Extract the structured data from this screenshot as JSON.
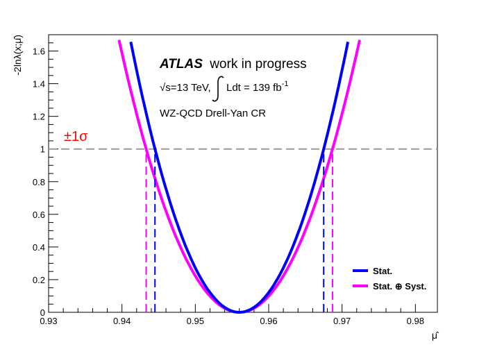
{
  "chart_data": {
    "type": "line",
    "xlabel": "μ̂",
    "ylabel": "-2lnλ(x;μ̂)",
    "xlim": [
      0.93,
      0.983
    ],
    "ylim": [
      0,
      1.7
    ],
    "xticks": [
      "0.93",
      "0.94",
      "0.95",
      "0.96",
      "0.97",
      "0.98"
    ],
    "yticks": [
      "0",
      "0.2",
      "0.4",
      "0.6",
      "0.8",
      "1",
      "1.2",
      "1.4",
      "1.6"
    ],
    "grid": false,
    "legend_position": "bottom-right",
    "annotations": {
      "atlas_bold": "ATLAS",
      "atlas_rest": "work in progress",
      "energy_prefix": "√s=13 TeV,",
      "lumi": "Ldt = 139 fb",
      "lumi_exp": "-1",
      "region": "WZ-QCD Drell-Yan CR",
      "sigma_label": "±1σ"
    },
    "sigma_line": {
      "y": 1.0,
      "color": "#999999"
    },
    "series": [
      {
        "name": "Stat.",
        "color": "#0000ff",
        "min_x": 0.956,
        "interval": [
          0.9445,
          0.9675
        ],
        "x": [
          0.9385,
          0.9445,
          0.95,
          0.954,
          0.956,
          0.958,
          0.962,
          0.9675,
          0.9717
        ],
        "y": [
          1.7,
          1.0,
          0.25,
          0.03,
          0.0,
          0.03,
          0.25,
          1.0,
          1.7
        ]
      },
      {
        "name": "Stat. ⊕ Syst.",
        "color": "#ff00ff",
        "min_x": 0.956,
        "interval": [
          0.9433,
          0.9687
        ],
        "x": [
          0.937,
          0.9433,
          0.95,
          0.954,
          0.956,
          0.958,
          0.962,
          0.9687,
          0.9735
        ],
        "y": [
          1.7,
          1.0,
          0.2,
          0.02,
          0.0,
          0.02,
          0.2,
          1.0,
          1.7
        ]
      }
    ]
  }
}
